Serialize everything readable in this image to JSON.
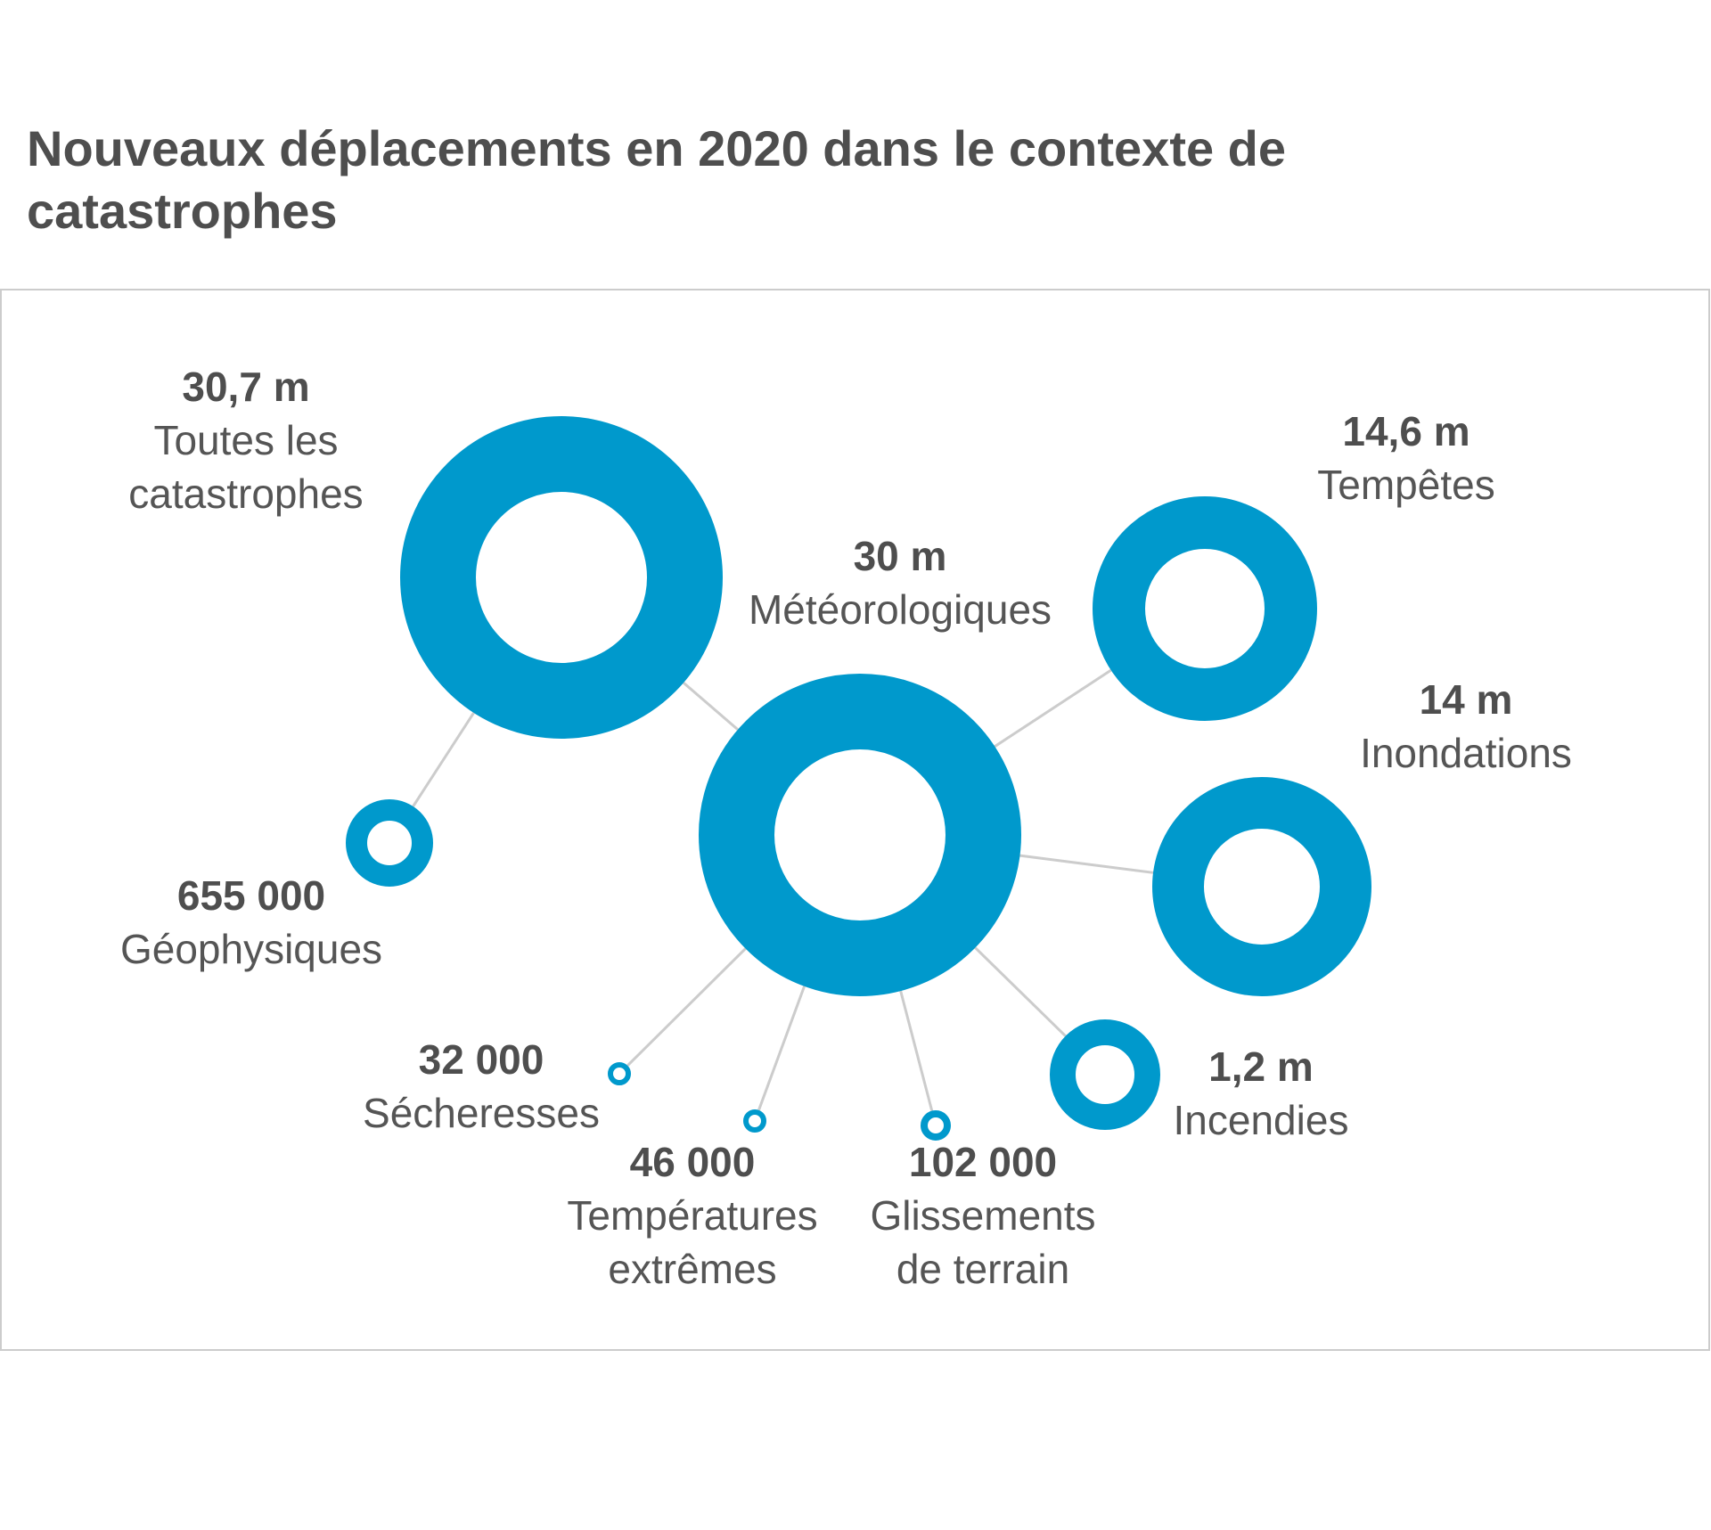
{
  "title": "Nouveaux déplacements en 2020 dans le contexte de catastrophes",
  "colors": {
    "ring": "#0099cc",
    "link": "#cccccc",
    "frame": "#cccccc",
    "text": "#4e4e4e"
  },
  "chart_data": {
    "type": "bubble-network",
    "unit_note": "m = millions",
    "nodes": [
      {
        "id": "total",
        "value_label": "30,7 m",
        "value": 30700000,
        "label": [
          "Toutes les",
          "catastrophes"
        ]
      },
      {
        "id": "meteo",
        "value_label": "30 m",
        "value": 30000000,
        "label": [
          "Météorologiques"
        ]
      },
      {
        "id": "geo",
        "value_label": "655 000",
        "value": 655000,
        "label": [
          "Géophysiques"
        ]
      },
      {
        "id": "storms",
        "value_label": "14,6 m",
        "value": 14600000,
        "label": [
          "Tempêtes"
        ]
      },
      {
        "id": "floods",
        "value_label": "14 m",
        "value": 14000000,
        "label": [
          "Inondations"
        ]
      },
      {
        "id": "fires",
        "value_label": "1,2 m",
        "value": 1200000,
        "label": [
          "Incendies"
        ]
      },
      {
        "id": "landslides",
        "value_label": "102 000",
        "value": 102000,
        "label": [
          "Glissements",
          "de terrain"
        ]
      },
      {
        "id": "heat",
        "value_label": "46 000",
        "value": 46000,
        "label": [
          "Températures",
          "extrêmes"
        ]
      },
      {
        "id": "drought",
        "value_label": "32 000",
        "value": 32000,
        "label": [
          "Sécheresses"
        ]
      }
    ],
    "links": [
      [
        "total",
        "meteo"
      ],
      [
        "total",
        "geo"
      ],
      [
        "meteo",
        "storms"
      ],
      [
        "meteo",
        "floods"
      ],
      [
        "meteo",
        "fires"
      ],
      [
        "meteo",
        "landslides"
      ],
      [
        "meteo",
        "heat"
      ],
      [
        "meteo",
        "drought"
      ]
    ]
  }
}
